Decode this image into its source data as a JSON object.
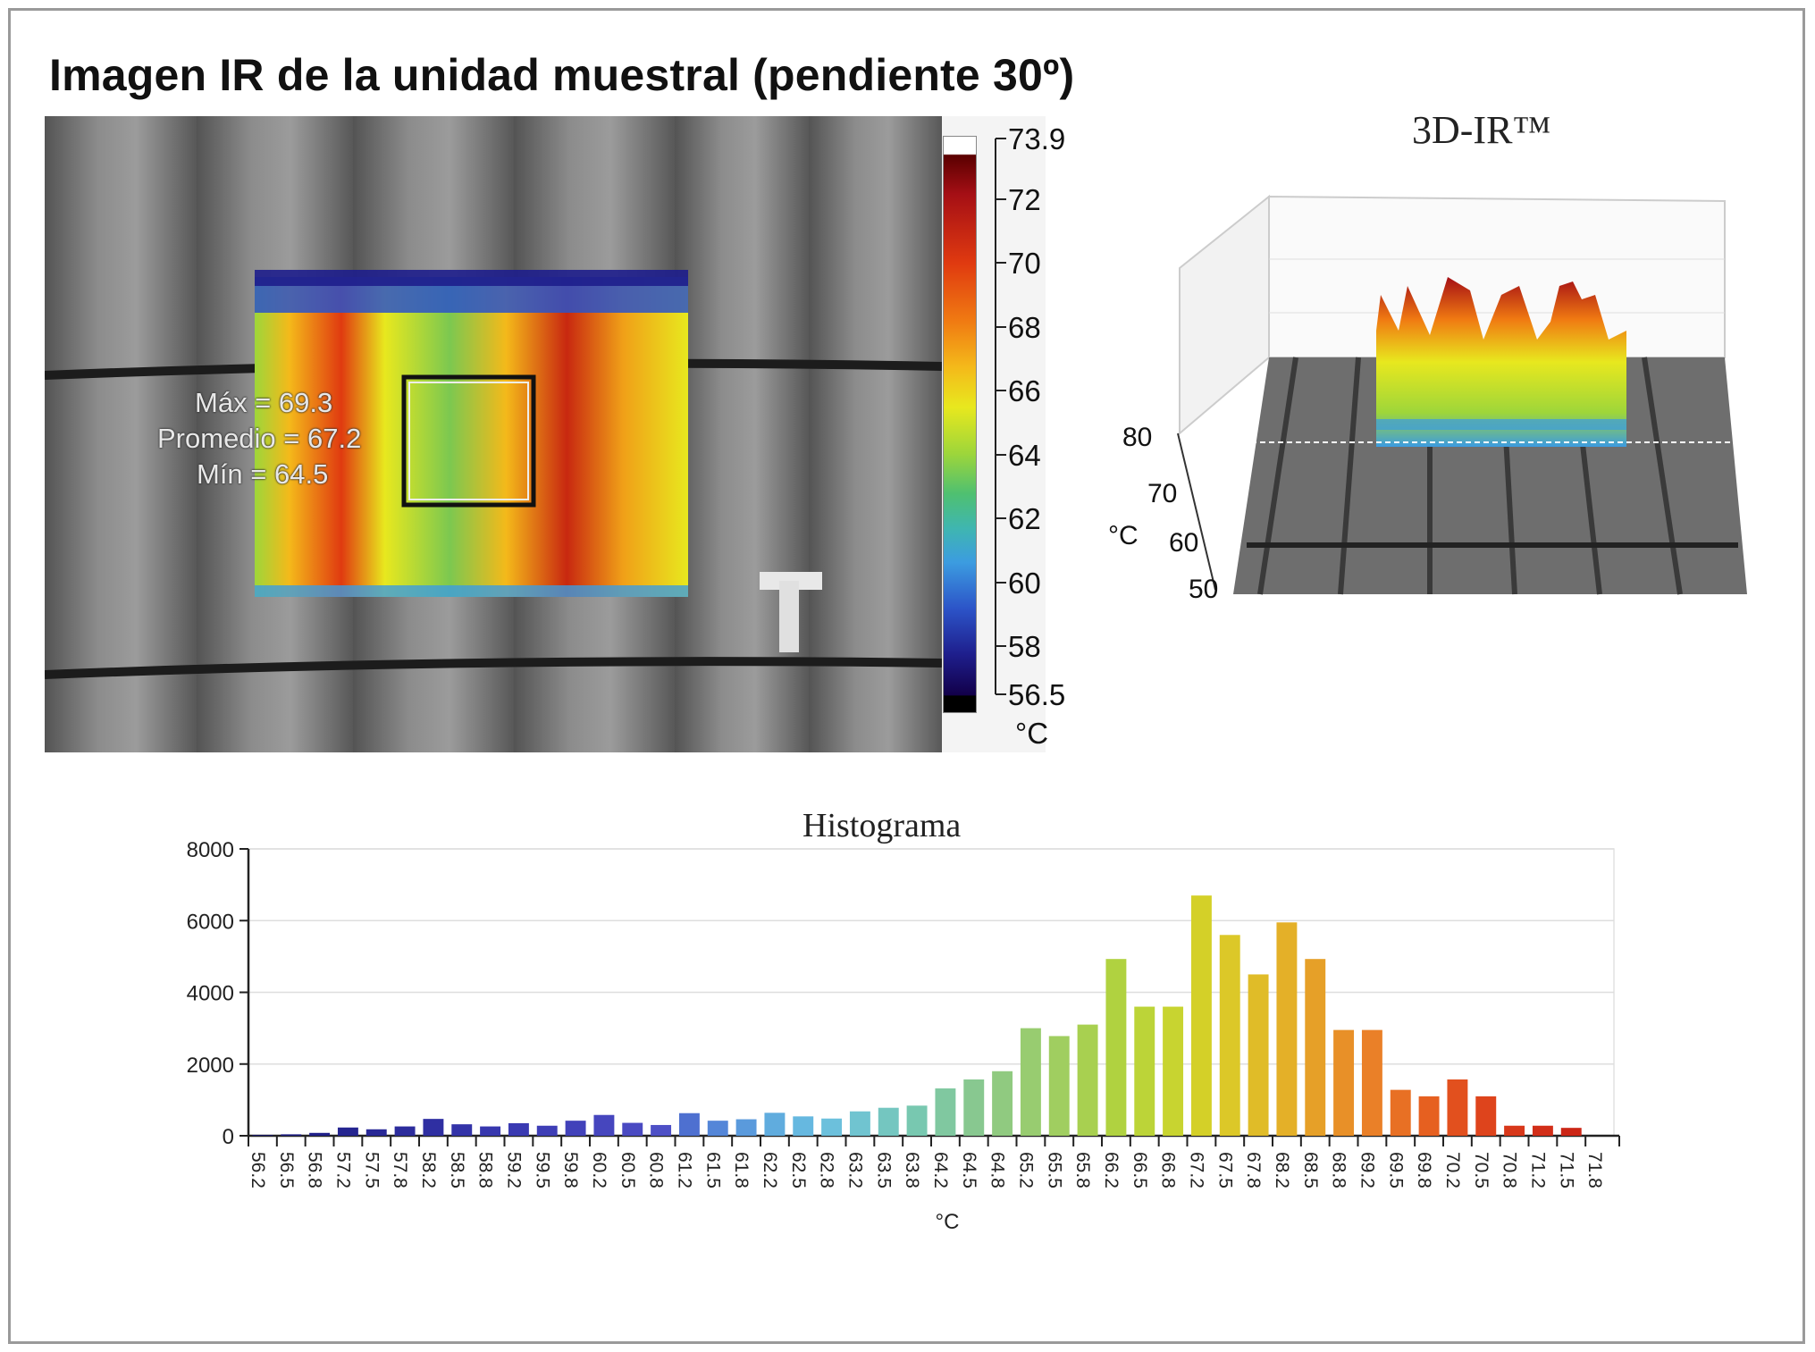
{
  "page": {
    "title": "Imagen IR de la unidad muestral (pendiente 30º)"
  },
  "ir_image": {
    "labels": {
      "max": "Máx = 69.3",
      "avg": "Promedio = 67.2",
      "min": "Mín = 64.5"
    },
    "colorbar": {
      "ticks": [
        "73.9",
        "72",
        "70",
        "68",
        "66",
        "64",
        "62",
        "60",
        "58",
        "56.5"
      ],
      "values": [
        73.9,
        72,
        70,
        68,
        66,
        64,
        62,
        60,
        58,
        56.5
      ],
      "unit": "°C"
    }
  },
  "view_3d": {
    "title": "3D-IR™",
    "axis_ticks": [
      "80",
      "70",
      "60",
      "50"
    ],
    "axis_unit": "°C"
  },
  "chart_data": {
    "type": "bar",
    "title": "Histograma",
    "xlabel": "°C",
    "ylabel": "",
    "ylim": [
      0,
      8000
    ],
    "yticks": [
      "8000",
      "6000",
      "4000",
      "2000",
      "0"
    ],
    "grid": true,
    "categories": [
      "56.2",
      "56.5",
      "56.8",
      "57.2",
      "57.5",
      "57.8",
      "58.2",
      "58.5",
      "58.8",
      "59.2",
      "59.5",
      "59.8",
      "60.2",
      "60.5",
      "60.8",
      "61.2",
      "61.5",
      "61.8",
      "62.2",
      "62.5",
      "62.8",
      "63.2",
      "63.5",
      "63.8",
      "64.2",
      "64.5",
      "64.8",
      "65.2",
      "65.5",
      "65.8",
      "66.2",
      "66.5",
      "66.8",
      "67.2",
      "67.5",
      "67.8",
      "68.2",
      "68.5",
      "68.8",
      "69.2",
      "69.5",
      "69.8",
      "70.2",
      "70.5",
      "70.8",
      "71.2",
      "71.5",
      "71.8"
    ],
    "values": [
      20,
      40,
      80,
      230,
      180,
      260,
      470,
      320,
      260,
      350,
      280,
      420,
      580,
      360,
      300,
      630,
      420,
      460,
      640,
      540,
      480,
      680,
      780,
      840,
      1320,
      1570,
      1800,
      3000,
      2780,
      3100,
      4930,
      3600,
      3600,
      6700,
      5600,
      4500,
      5950,
      4930,
      2950,
      2950,
      1280,
      1100,
      1570,
      1100,
      280,
      280,
      220,
      0
    ],
    "colors": [
      "#1a1a7a",
      "#1d1d82",
      "#20208a",
      "#252590",
      "#282896",
      "#2c2c9c",
      "#2f2fa2",
      "#3333a8",
      "#3737ae",
      "#3a3ab2",
      "#3e3eb6",
      "#4242ba",
      "#4646be",
      "#4a4ac2",
      "#4e50c6",
      "#4e70d0",
      "#5486d8",
      "#5a9adc",
      "#60acde",
      "#66b8e0",
      "#6cc0dc",
      "#70c4d0",
      "#74c6c0",
      "#78c8b0",
      "#80c8a0",
      "#88c890",
      "#90ca80",
      "#98cc70",
      "#a0ce60",
      "#a8d050",
      "#b0d240",
      "#bcd438",
      "#c8d430",
      "#d4d028",
      "#dcc828",
      "#e0bc28",
      "#e4b028",
      "#e6a028",
      "#e89028",
      "#ea8028",
      "#e87024",
      "#e66020",
      "#e2501e",
      "#de441c",
      "#d8381a",
      "#d22e18",
      "#cc2616",
      "#c61e14"
    ]
  }
}
